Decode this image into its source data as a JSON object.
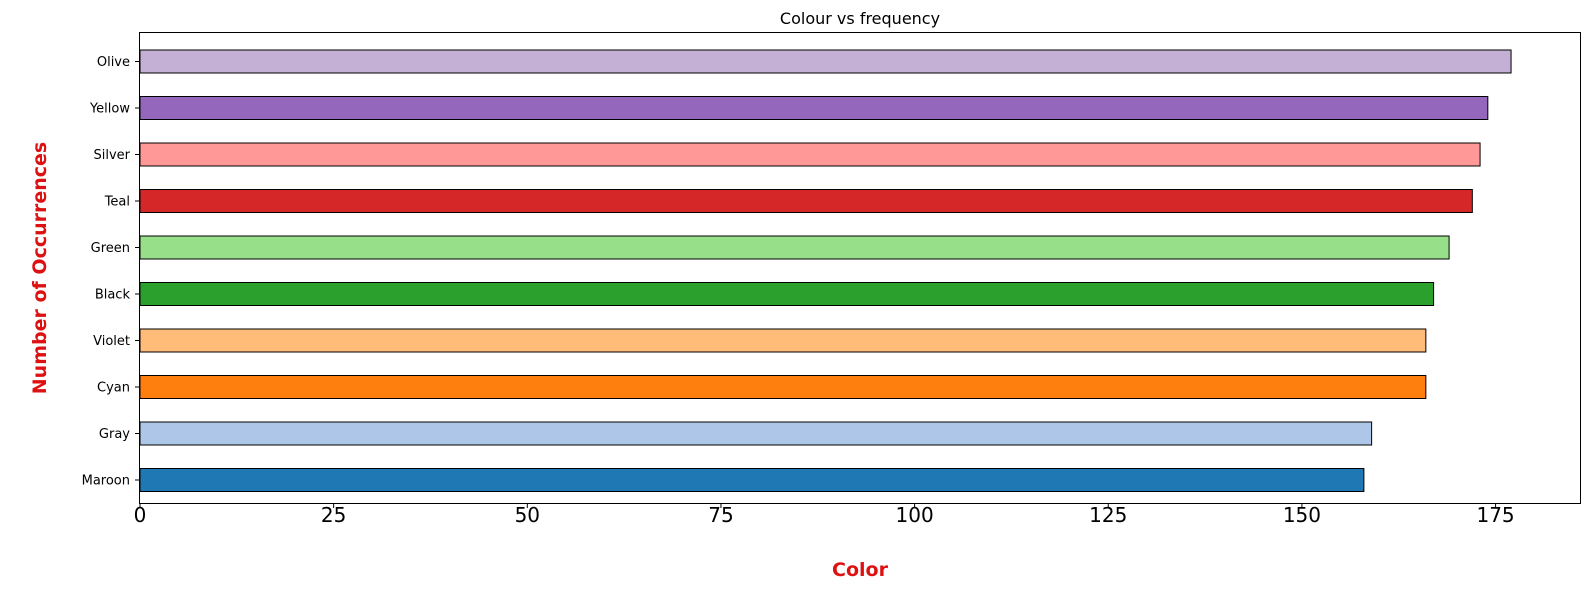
{
  "chart_data": {
    "type": "bar",
    "orientation": "horizontal",
    "title": "Colour vs frequency",
    "xlabel": "Color",
    "ylabel": "Number of Occurrences",
    "axis_label_color": "#dd1111",
    "categories": [
      "Maroon",
      "Gray",
      "Cyan",
      "Violet",
      "Black",
      "Green",
      "Teal",
      "Silver",
      "Yellow",
      "Olive"
    ],
    "values": [
      158,
      159,
      166,
      166,
      167,
      169,
      172,
      173,
      174,
      177
    ],
    "bar_colors": [
      "#1f77b4",
      "#aec7e8",
      "#ff7f0e",
      "#ffbb78",
      "#2ca02c",
      "#98df8a",
      "#d62728",
      "#ff9896",
      "#9467bd",
      "#c5b0d5"
    ],
    "bar_edge_color": "#000000",
    "xticks": [
      0,
      25,
      50,
      75,
      100,
      125,
      150,
      175
    ],
    "xlim": [
      0,
      185.9
    ],
    "grid": false,
    "legend": "none"
  }
}
